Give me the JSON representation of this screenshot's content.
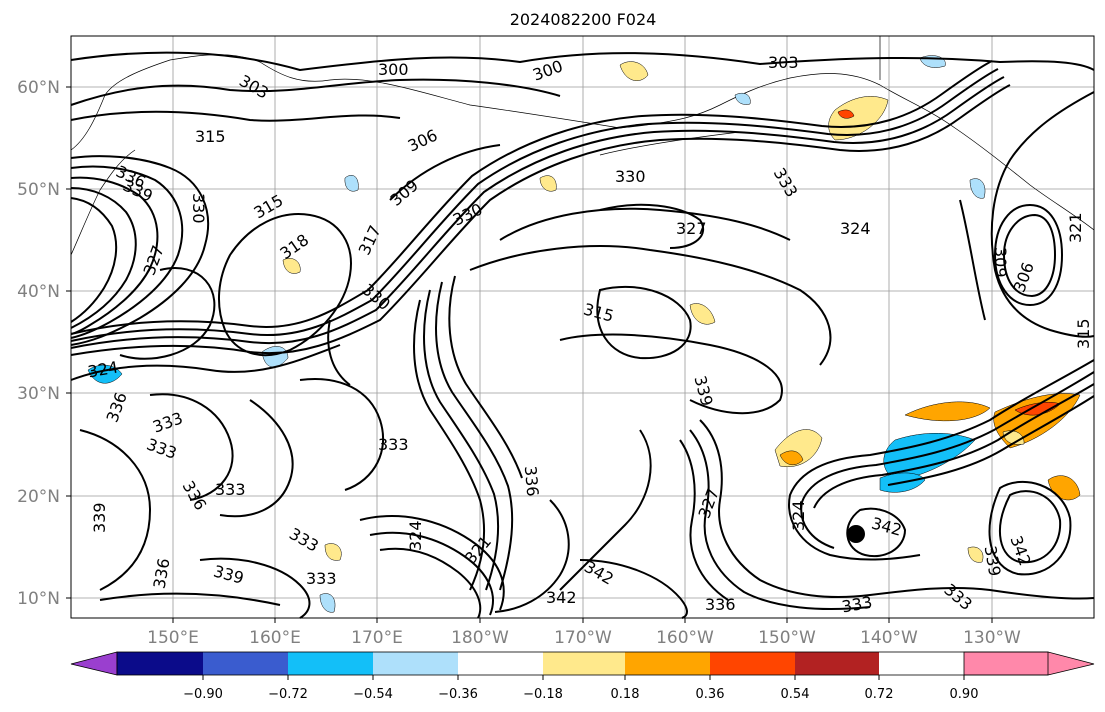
{
  "title": "2024082200 F024",
  "lat_labels": [
    "60°N",
    "50°N",
    "40°N",
    "30°N",
    "20°N",
    "10°N"
  ],
  "lon_labels": [
    "150°E",
    "160°E",
    "170°E",
    "180°W",
    "170°W",
    "160°W",
    "150°W",
    "140°W",
    "130°W"
  ],
  "colorbar": {
    "ticks": [
      "−0.90",
      "−0.72",
      "−0.54",
      "−0.36",
      "−0.18",
      "0.18",
      "0.36",
      "0.54",
      "0.72",
      "0.90"
    ],
    "colors": [
      "#9a3fcf",
      "#0b0b8a",
      "#3a5ccf",
      "#13bff8",
      "#aee0fb",
      "#ffffff",
      "#ffe98c",
      "#ffa500",
      "#ff4500",
      "#b22222",
      "#ff88aa"
    ]
  },
  "contour_labels": [
    "300",
    "300",
    "303",
    "303",
    "306",
    "309",
    "315",
    "315",
    "318",
    "317",
    "330",
    "330",
    "330",
    "333",
    "327",
    "324",
    "315",
    "309",
    "306",
    "321",
    "315",
    "336",
    "339",
    "330",
    "327",
    "324",
    "336",
    "333",
    "333",
    "336",
    "333",
    "333",
    "339",
    "333",
    "336",
    "339",
    "333",
    "324",
    "321",
    "342",
    "342",
    "336",
    "339",
    "327",
    "324",
    "342",
    "333",
    "336",
    "339",
    "342",
    "333"
  ]
}
